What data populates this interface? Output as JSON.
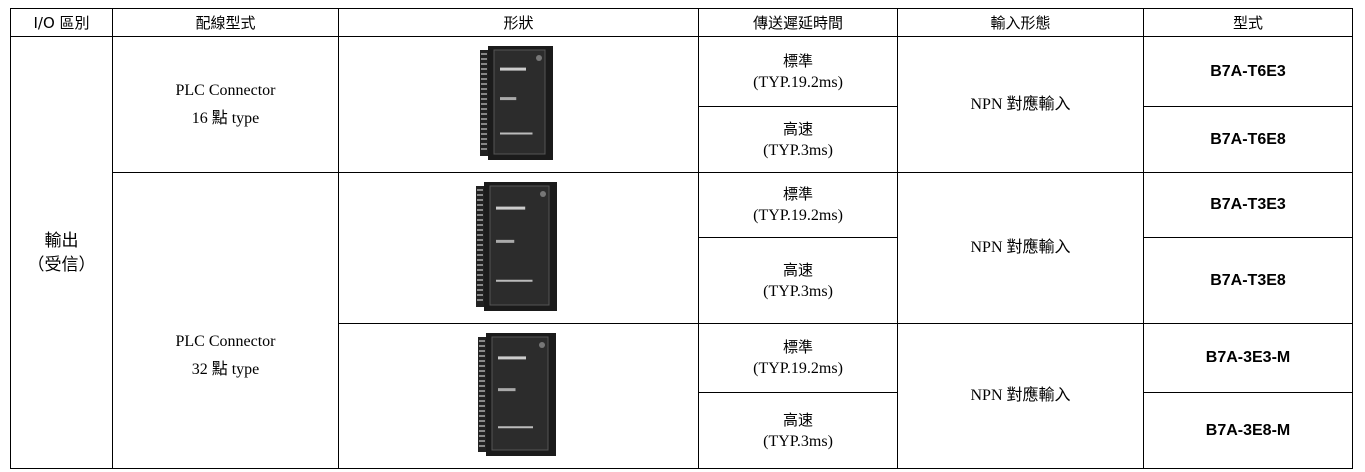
{
  "table": {
    "columns": [
      "I/O 區別",
      "配線型式",
      "形狀",
      "傳送遲延時間",
      "輸入形態",
      "型式"
    ],
    "io": [
      "輸出",
      "（受信）"
    ],
    "groups": [
      {
        "wiring": [
          "PLC Connector",
          "16 點 type"
        ],
        "units": [
          {
            "input": "NPN 對應輸入",
            "rows": [
              {
                "delay": [
                  "標準",
                  "(TYP.19.2ms)"
                ],
                "model": "B7A-T6E3"
              },
              {
                "delay": [
                  "高速",
                  "(TYP.3ms)"
                ],
                "model": "B7A-T6E8"
              }
            ]
          }
        ]
      },
      {
        "wiring": [
          "PLC Connector",
          "32 點 type"
        ],
        "units": [
          {
            "input": "NPN 對應輸入",
            "rows": [
              {
                "delay": [
                  "標準",
                  "(TYP.19.2ms)"
                ],
                "model": "B7A-T3E3"
              },
              {
                "delay": [
                  "高速",
                  "(TYP.3ms)"
                ],
                "model": "B7A-T3E8"
              }
            ]
          },
          {
            "input": "NPN 對應輸入",
            "rows": [
              {
                "delay": [
                  "標準",
                  "(TYP.19.2ms)"
                ],
                "model": "B7A-3E3-M"
              },
              {
                "delay": [
                  "高速",
                  "(TYP.3ms)"
                ],
                "model": "B7A-3E8-M"
              }
            ]
          }
        ]
      }
    ]
  }
}
